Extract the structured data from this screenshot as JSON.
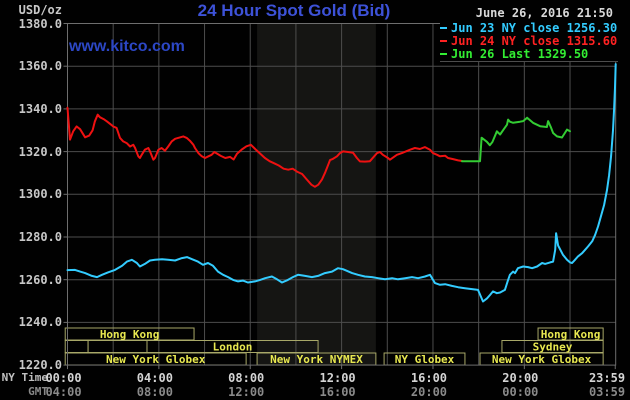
{
  "header": {
    "units": "USD/oz",
    "title": "24 Hour Spot Gold (Bid)",
    "datetime": "June 26, 2016 21:50",
    "watermark": "www.kitco.com"
  },
  "legend": {
    "rows": [
      {
        "marker_color": "#33ccff",
        "text": "Jun 23 NY close 1256.30"
      },
      {
        "marker_color": "#ff2222",
        "text": "Jun 24 NY close 1315.60"
      },
      {
        "marker_color": "#33ee33",
        "text": "Jun 26 Last 1329.50"
      }
    ]
  },
  "axis": {
    "ny_label": "NY Time",
    "gmt_label": "GMT",
    "y_ticks": [
      "1380.0",
      "1360.0",
      "1340.0",
      "1320.0",
      "1300.0",
      "1280.0",
      "1260.0",
      "1240.0",
      "1220.0"
    ],
    "x_ticks": [
      {
        "h": 0,
        "ny": "00:00",
        "gmt": "04:00"
      },
      {
        "h": 4,
        "ny": "04:00",
        "gmt": "08:00"
      },
      {
        "h": 8,
        "ny": "08:00",
        "gmt": "12:00"
      },
      {
        "h": 12,
        "ny": "12:00",
        "gmt": "16:00"
      },
      {
        "h": 16,
        "ny": "16:00",
        "gmt": "20:00"
      },
      {
        "h": 20,
        "ny": "20:00",
        "gmt": "00:00"
      },
      {
        "h": 23.98,
        "ny": "23:59",
        "gmt": "03:59"
      }
    ]
  },
  "sessions": {
    "rows": [
      {
        "boxes": [
          {
            "start": -0.1,
            "end": 5.54,
            "label": "Hong Kong"
          },
          {
            "start": 20.6,
            "end": 23.45,
            "label": "Hong Kong"
          }
        ]
      },
      {
        "boxes": [
          {
            "start": -0.1,
            "end": 0.9,
            "label": ""
          },
          {
            "start": 0.9,
            "end": 3.48,
            "label": ""
          },
          {
            "start": 3.48,
            "end": 10.97,
            "label": "London"
          },
          {
            "start": 19.02,
            "end": 23.45,
            "label": "Sydney"
          }
        ]
      },
      {
        "boxes": [
          {
            "start": -0.1,
            "end": 7.82,
            "label": "New York Globex"
          },
          {
            "start": 8.3,
            "end": 13.5,
            "label": "New York NYMEX"
          },
          {
            "start": 13.86,
            "end": 17.4,
            "label": "NY Globex"
          },
          {
            "start": 18.06,
            "end": 23.45,
            "label": "New York Globex"
          }
        ]
      }
    ]
  },
  "chart_data": {
    "type": "line",
    "title": "24 Hour Spot Gold (Bid)",
    "ylabel": "USD/oz",
    "ylim": [
      1220,
      1380
    ],
    "y_tick_step": 20,
    "xlim_hours": [
      0,
      24
    ],
    "x_grid_step_hours": 2,
    "grid": true,
    "legend_position": "top-right",
    "comex_band_hours": [
      8.3,
      13.5
    ],
    "colors": {
      "background": "#010101",
      "band": "#151513",
      "grid": "#4d4d4d",
      "border": "#6e6e6e",
      "session_border": "#a8a868",
      "session_text": "#e8e850"
    },
    "series": [
      {
        "id": "jun23",
        "name": "Jun 23 (NY close 1256.30)",
        "color": "#33ccff",
        "points": [
          [
            0,
            1264.5
          ],
          [
            0.33,
            1264.6
          ],
          [
            0.55,
            1263.8
          ],
          [
            0.77,
            1263.1
          ],
          [
            1.07,
            1261.8
          ],
          [
            1.29,
            1261.2
          ],
          [
            1.51,
            1262.3
          ],
          [
            1.77,
            1263.4
          ],
          [
            2.08,
            1264.6
          ],
          [
            2.39,
            1266.5
          ],
          [
            2.6,
            1268.5
          ],
          [
            2.82,
            1269.3
          ],
          [
            3.04,
            1267.8
          ],
          [
            3.17,
            1266.2
          ],
          [
            3.39,
            1267.4
          ],
          [
            3.61,
            1269.0
          ],
          [
            3.83,
            1269.3
          ],
          [
            4.14,
            1269.6
          ],
          [
            4.4,
            1269.3
          ],
          [
            4.71,
            1269.0
          ],
          [
            5.01,
            1270.1
          ],
          [
            5.23,
            1270.6
          ],
          [
            5.45,
            1269.6
          ],
          [
            5.71,
            1268.5
          ],
          [
            5.93,
            1267.0
          ],
          [
            6.15,
            1267.8
          ],
          [
            6.37,
            1266.5
          ],
          [
            6.59,
            1263.8
          ],
          [
            6.81,
            1262.3
          ],
          [
            7.03,
            1261.2
          ],
          [
            7.25,
            1259.9
          ],
          [
            7.47,
            1259.2
          ],
          [
            7.68,
            1259.6
          ],
          [
            7.9,
            1258.7
          ],
          [
            8.21,
            1259.2
          ],
          [
            8.43,
            1259.9
          ],
          [
            8.65,
            1260.7
          ],
          [
            8.95,
            1261.5
          ],
          [
            9.17,
            1260.2
          ],
          [
            9.39,
            1258.7
          ],
          [
            9.65,
            1259.9
          ],
          [
            9.87,
            1261.2
          ],
          [
            10.09,
            1262.3
          ],
          [
            10.4,
            1261.8
          ],
          [
            10.7,
            1261.2
          ],
          [
            10.97,
            1261.8
          ],
          [
            11.27,
            1263.1
          ],
          [
            11.58,
            1263.8
          ],
          [
            11.84,
            1265.4
          ],
          [
            12.06,
            1264.9
          ],
          [
            12.46,
            1263.1
          ],
          [
            12.72,
            1262.3
          ],
          [
            13.02,
            1261.5
          ],
          [
            13.33,
            1261.2
          ],
          [
            13.6,
            1260.7
          ],
          [
            13.9,
            1260.2
          ],
          [
            14.21,
            1260.7
          ],
          [
            14.47,
            1260.2
          ],
          [
            14.78,
            1260.7
          ],
          [
            15.08,
            1261.2
          ],
          [
            15.35,
            1260.7
          ],
          [
            15.65,
            1261.5
          ],
          [
            15.87,
            1262.3
          ],
          [
            16.09,
            1258.4
          ],
          [
            16.31,
            1257.6
          ],
          [
            16.53,
            1257.9
          ],
          [
            16.83,
            1257.1
          ],
          [
            17.1,
            1256.5
          ],
          [
            17.4,
            1256.0
          ],
          [
            17.71,
            1255.6
          ],
          [
            17.97,
            1255.2
          ],
          [
            18.19,
            1249.8
          ],
          [
            18.37,
            1251.3
          ],
          [
            18.5,
            1252.9
          ],
          [
            18.63,
            1254.5
          ],
          [
            18.8,
            1253.7
          ],
          [
            18.94,
            1254.0
          ],
          [
            19.15,
            1255.2
          ],
          [
            19.29,
            1259.9
          ],
          [
            19.37,
            1262.3
          ],
          [
            19.51,
            1263.8
          ],
          [
            19.59,
            1263.1
          ],
          [
            19.72,
            1265.4
          ],
          [
            19.95,
            1266.2
          ],
          [
            20.16,
            1265.9
          ],
          [
            20.34,
            1265.4
          ],
          [
            20.56,
            1266.2
          ],
          [
            20.78,
            1267.8
          ],
          [
            20.91,
            1267.4
          ],
          [
            21.13,
            1268.1
          ],
          [
            21.26,
            1268.5
          ],
          [
            21.35,
            1274.0
          ],
          [
            21.39,
            1281.8
          ],
          [
            21.48,
            1276.0
          ],
          [
            21.69,
            1271.7
          ],
          [
            21.87,
            1269.3
          ],
          [
            22.0,
            1268.1
          ],
          [
            22.09,
            1267.8
          ],
          [
            22.22,
            1269.3
          ],
          [
            22.35,
            1270.9
          ],
          [
            22.53,
            1272.4
          ],
          [
            22.66,
            1274.0
          ],
          [
            22.79,
            1275.6
          ],
          [
            22.97,
            1278.0
          ],
          [
            23.1,
            1281.0
          ],
          [
            23.23,
            1285.0
          ],
          [
            23.36,
            1290.0
          ],
          [
            23.49,
            1295.0
          ],
          [
            23.62,
            1302.0
          ],
          [
            23.71,
            1309.0
          ],
          [
            23.8,
            1318.0
          ],
          [
            23.88,
            1330.0
          ],
          [
            23.93,
            1340.0
          ],
          [
            23.97,
            1350.0
          ],
          [
            24.0,
            1361.0
          ]
        ]
      },
      {
        "id": "jun24",
        "name": "Jun 24 (NY close 1315.60)",
        "color": "#ee1111",
        "points": [
          [
            0,
            1340.5
          ],
          [
            0.11,
            1325.6
          ],
          [
            0.25,
            1329.5
          ],
          [
            0.4,
            1331.8
          ],
          [
            0.55,
            1330.5
          ],
          [
            0.77,
            1326.7
          ],
          [
            0.95,
            1327.5
          ],
          [
            1.1,
            1330.0
          ],
          [
            1.2,
            1334.2
          ],
          [
            1.32,
            1337.3
          ],
          [
            1.42,
            1336.1
          ],
          [
            1.58,
            1335.2
          ],
          [
            1.72,
            1334.2
          ],
          [
            1.86,
            1333.0
          ],
          [
            2.0,
            1331.8
          ],
          [
            2.15,
            1331.1
          ],
          [
            2.3,
            1326.4
          ],
          [
            2.44,
            1324.8
          ],
          [
            2.59,
            1324.0
          ],
          [
            2.74,
            1322.4
          ],
          [
            2.88,
            1323.2
          ],
          [
            2.96,
            1321.7
          ],
          [
            3.1,
            1317.8
          ],
          [
            3.17,
            1317.0
          ],
          [
            3.25,
            1318.5
          ],
          [
            3.39,
            1320.9
          ],
          [
            3.54,
            1321.7
          ],
          [
            3.61,
            1320.1
          ],
          [
            3.76,
            1316.2
          ],
          [
            3.83,
            1317.0
          ],
          [
            3.98,
            1320.9
          ],
          [
            4.12,
            1321.7
          ],
          [
            4.27,
            1320.4
          ],
          [
            4.41,
            1322.4
          ],
          [
            4.56,
            1324.8
          ],
          [
            4.71,
            1326.0
          ],
          [
            5.07,
            1327.1
          ],
          [
            5.22,
            1326.4
          ],
          [
            5.36,
            1325.1
          ],
          [
            5.51,
            1323.2
          ],
          [
            5.58,
            1321.7
          ],
          [
            5.73,
            1319.3
          ],
          [
            5.88,
            1317.8
          ],
          [
            6.02,
            1317.0
          ],
          [
            6.17,
            1317.8
          ],
          [
            6.31,
            1318.5
          ],
          [
            6.43,
            1319.8
          ],
          [
            6.71,
            1318.0
          ],
          [
            6.91,
            1317.0
          ],
          [
            7.12,
            1317.5
          ],
          [
            7.27,
            1316.3
          ],
          [
            7.42,
            1319.0
          ],
          [
            7.63,
            1321.0
          ],
          [
            7.83,
            1322.5
          ],
          [
            8.03,
            1323.2
          ],
          [
            8.24,
            1321.0
          ],
          [
            8.44,
            1319.0
          ],
          [
            8.64,
            1317.0
          ],
          [
            8.85,
            1315.5
          ],
          [
            9.05,
            1314.5
          ],
          [
            9.25,
            1313.5
          ],
          [
            9.46,
            1312.0
          ],
          [
            9.66,
            1311.5
          ],
          [
            9.86,
            1312.0
          ],
          [
            10.07,
            1310.5
          ],
          [
            10.27,
            1309.5
          ],
          [
            10.47,
            1307.0
          ],
          [
            10.68,
            1304.5
          ],
          [
            10.83,
            1303.5
          ],
          [
            10.98,
            1304.5
          ],
          [
            11.14,
            1307.0
          ],
          [
            11.29,
            1310.5
          ],
          [
            11.44,
            1314.5
          ],
          [
            11.49,
            1316.0
          ],
          [
            11.6,
            1316.5
          ],
          [
            11.8,
            1317.8
          ],
          [
            11.93,
            1319.3
          ],
          [
            12.06,
            1320.1
          ],
          [
            12.28,
            1319.8
          ],
          [
            12.5,
            1319.5
          ],
          [
            12.67,
            1317.0
          ],
          [
            12.8,
            1315.4
          ],
          [
            13.02,
            1315.3
          ],
          [
            13.24,
            1315.5
          ],
          [
            13.55,
            1319.3
          ],
          [
            13.68,
            1319.8
          ],
          [
            13.81,
            1318.5
          ],
          [
            14.03,
            1317.0
          ],
          [
            14.12,
            1316.2
          ],
          [
            14.42,
            1318.5
          ],
          [
            14.64,
            1319.3
          ],
          [
            15.0,
            1320.9
          ],
          [
            15.21,
            1321.7
          ],
          [
            15.43,
            1321.2
          ],
          [
            15.65,
            1322.1
          ],
          [
            15.87,
            1320.9
          ],
          [
            16.0,
            1319.3
          ],
          [
            16.18,
            1318.5
          ],
          [
            16.31,
            1317.8
          ],
          [
            16.53,
            1318.1
          ],
          [
            16.66,
            1317.0
          ],
          [
            16.88,
            1316.5
          ],
          [
            17.1,
            1315.9
          ],
          [
            17.27,
            1315.6
          ]
        ]
      },
      {
        "id": "jun26",
        "name": "Jun 26 (Last 1329.50)",
        "color": "#33cc33",
        "points": [
          [
            17.27,
            1315.5
          ],
          [
            18.06,
            1315.5
          ],
          [
            18.13,
            1326.5
          ],
          [
            18.36,
            1324.6
          ],
          [
            18.49,
            1323.0
          ],
          [
            18.6,
            1324.5
          ],
          [
            18.8,
            1329.5
          ],
          [
            18.94,
            1328.0
          ],
          [
            19.1,
            1330.5
          ],
          [
            19.24,
            1332.6
          ],
          [
            19.29,
            1335.0
          ],
          [
            19.37,
            1334.0
          ],
          [
            19.51,
            1333.5
          ],
          [
            19.81,
            1334.0
          ],
          [
            19.95,
            1334.3
          ],
          [
            20.12,
            1335.9
          ],
          [
            20.38,
            1333.5
          ],
          [
            20.69,
            1331.9
          ],
          [
            20.99,
            1331.5
          ],
          [
            21.04,
            1334.3
          ],
          [
            21.16,
            1331.5
          ],
          [
            21.26,
            1328.7
          ],
          [
            21.43,
            1327.1
          ],
          [
            21.65,
            1326.6
          ],
          [
            21.87,
            1330.3
          ],
          [
            22.0,
            1329.5
          ]
        ]
      }
    ]
  }
}
